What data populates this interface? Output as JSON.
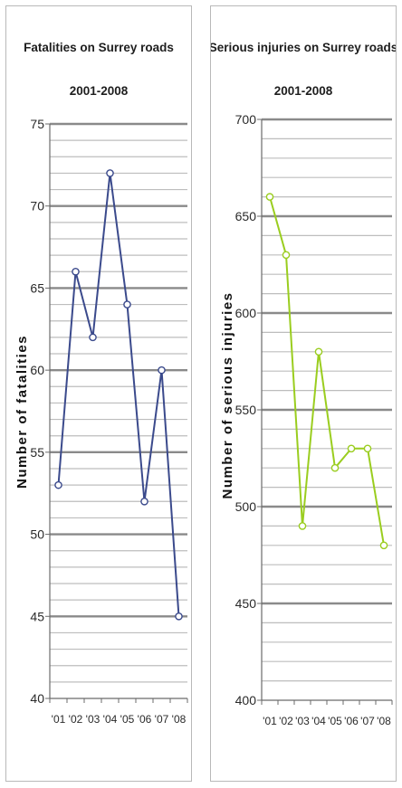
{
  "chart_data": [
    {
      "type": "line",
      "title": "Fatalities on Surrey roads",
      "subtitle": "2001-2008",
      "ylabel": "Number of fatalities",
      "xlabel": "",
      "categories": [
        "'01",
        "'02",
        "'03",
        "'04",
        "'05",
        "'06",
        "'07",
        "'08"
      ],
      "series": [
        {
          "values": [
            53,
            66,
            62,
            72,
            64,
            52,
            60,
            45
          ],
          "color": "#3b4a8c"
        }
      ],
      "ylim": [
        40,
        75
      ],
      "yticks": [
        40,
        45,
        50,
        55,
        60,
        65,
        70,
        75
      ],
      "grid": true,
      "legend": "none"
    },
    {
      "type": "line",
      "title": "Serious injuries on Surrey roads",
      "subtitle": "2001-2008",
      "ylabel": "Number of serious injuries",
      "xlabel": "",
      "categories": [
        "'01",
        "'02",
        "'03",
        "'04",
        "'05",
        "'06",
        "'07",
        "'08"
      ],
      "series": [
        {
          "values": [
            660,
            630,
            490,
            580,
            520,
            530,
            530,
            480
          ],
          "color": "#9acd1f"
        }
      ],
      "ylim": [
        400,
        700
      ],
      "yticks": [
        400,
        450,
        500,
        550,
        600,
        650,
        700
      ],
      "grid": true,
      "legend": "none"
    }
  ]
}
